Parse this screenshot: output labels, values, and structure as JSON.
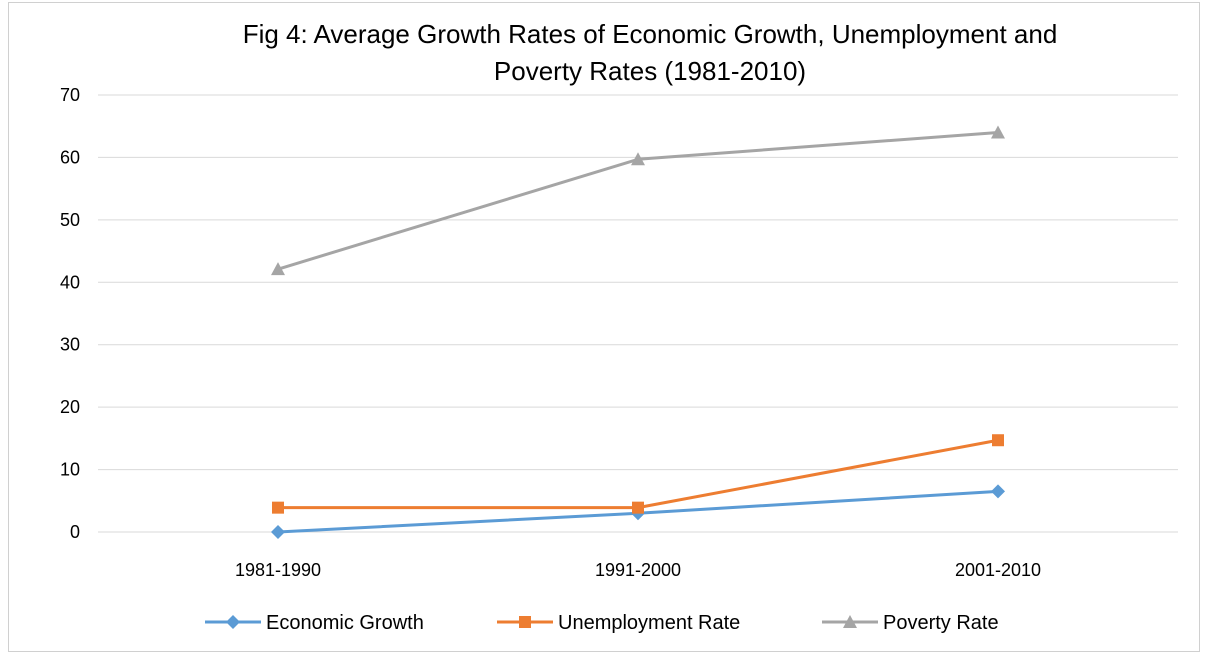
{
  "chart_data": {
    "type": "line",
    "title": "Fig 4: Average Growth Rates of Economic Growth, Unemployment and Poverty Rates (1981-2010)",
    "title_lines": [
      "Fig 4: Average Growth Rates of Economic Growth, Unemployment and",
      "Poverty Rates (1981-2010)"
    ],
    "xlabel": "",
    "ylabel": "",
    "categories": [
      "1981-1990",
      "1991-2000",
      "2001-2010"
    ],
    "ylim": [
      0,
      70
    ],
    "yticks": [
      0,
      10,
      20,
      30,
      40,
      50,
      60,
      70
    ],
    "grid": true,
    "legend": "bottom",
    "series": [
      {
        "name": "Economic Growth",
        "values": [
          0,
          3.0,
          6.5
        ],
        "color": "#5b9bd5",
        "marker": "diamond"
      },
      {
        "name": "Unemployment Rate",
        "values": [
          3.9,
          3.9,
          14.7
        ],
        "color": "#ed7d31",
        "marker": "square"
      },
      {
        "name": "Poverty Rate",
        "values": [
          42.1,
          59.7,
          64.0
        ],
        "color": "#a5a5a5",
        "marker": "triangle"
      }
    ]
  }
}
